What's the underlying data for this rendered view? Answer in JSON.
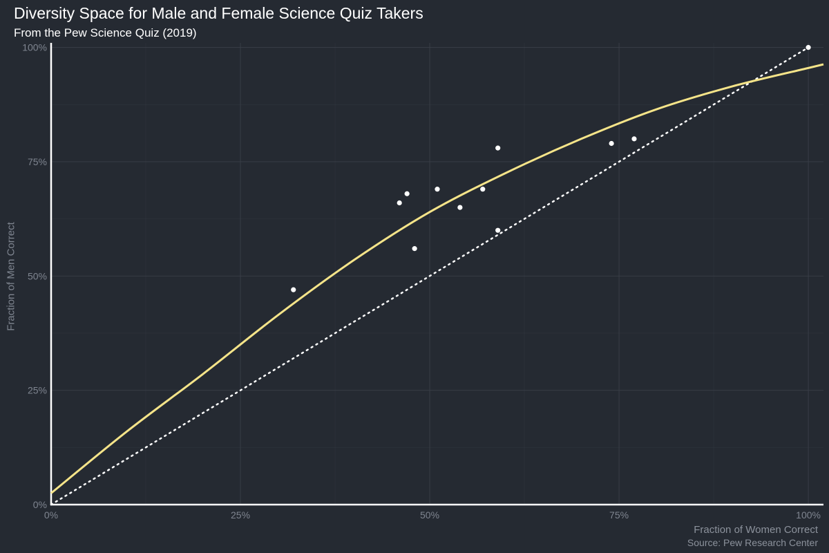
{
  "chart_data": {
    "type": "scatter",
    "title": "Diversity Space for Male and Female Science Quiz Takers",
    "subtitle": "From the Pew Science Quiz (2019)",
    "xlabel": "Fraction of Women Correct",
    "ylabel": "Fraction of Men Correct",
    "source": "Source: Pew Research Center",
    "xlim": [
      0,
      1.02
    ],
    "ylim": [
      0,
      1.01
    ],
    "x_ticks": [
      0,
      0.25,
      0.5,
      0.75,
      1.0
    ],
    "x_tick_labels": [
      "0%",
      "25%",
      "50%",
      "75%",
      "100%"
    ],
    "y_ticks": [
      0,
      0.25,
      0.5,
      0.75,
      1.0
    ],
    "y_tick_labels": [
      "0%",
      "25%",
      "50%",
      "75%",
      "100%"
    ],
    "grid": true,
    "points": {
      "x": [
        0.32,
        0.46,
        0.47,
        0.48,
        0.51,
        0.54,
        0.57,
        0.59,
        0.59,
        0.74,
        0.77,
        1.0
      ],
      "y": [
        0.47,
        0.66,
        0.68,
        0.56,
        0.69,
        0.65,
        0.69,
        0.78,
        0.6,
        0.79,
        0.8,
        1.0
      ]
    },
    "fit_curve": {
      "x": [
        0,
        0.1,
        0.2,
        0.3,
        0.4,
        0.5,
        0.6,
        0.7,
        0.8,
        0.9,
        1.0,
        1.02
      ],
      "y": [
        0.025,
        0.16,
        0.285,
        0.415,
        0.535,
        0.64,
        0.725,
        0.8,
        0.865,
        0.915,
        0.955,
        0.963
      ]
    },
    "reference_line": {
      "x": [
        0,
        1.0
      ],
      "y": [
        0,
        1.0
      ]
    },
    "colors": {
      "background": "#252a32",
      "points": "#ffffff",
      "fit_curve": "#f5e489",
      "reference_line": "#ffffff",
      "grid": "#3a3f48",
      "axis": "#ffffff"
    }
  }
}
